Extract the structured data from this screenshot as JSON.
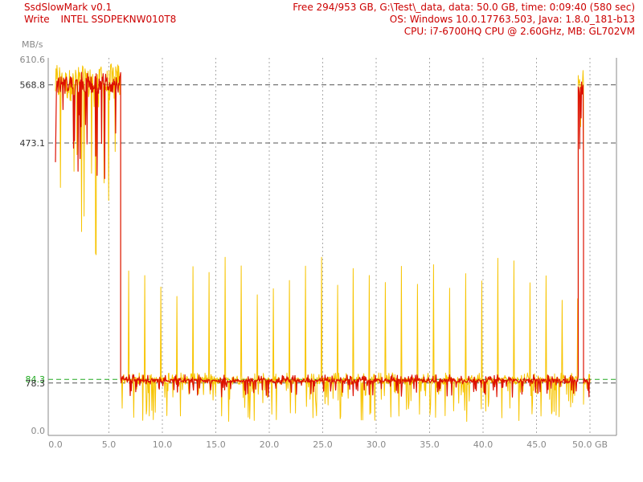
{
  "header": {
    "app": "SsdSlowMark v0.1",
    "mode": "Write",
    "device": "INTEL SSDPEKNW010T8",
    "line1": "Free 294/953 GB, G:\\Test\\_data, data: 50.0 GB, time: 0:09:40 (580 sec)",
    "line2": "OS: Windows 10.0.17763.503, Java: 1.8.0_181-b13",
    "line3": "CPU: i7-6700HQ CPU @ 2.60GHz, MB: GL702VM"
  },
  "colors": {
    "text_red": "#cc0000",
    "axis_gray": "#888888",
    "trace_yellow": "#f7c400",
    "trace_red": "#dd1100",
    "avg_green": "#22aa22",
    "ref_dark": "#555555"
  },
  "chart_data": {
    "type": "line",
    "ylabel": "MB/s",
    "xunit": "GB",
    "xlim": [
      0,
      50
    ],
    "ylim": [
      0,
      610.6
    ],
    "x_ticks": [
      "0.0",
      "5.0",
      "10.0",
      "15.0",
      "20.0",
      "25.0",
      "30.0",
      "35.0",
      "40.0",
      "45.0",
      "50.0"
    ],
    "x_tick_values": [
      0,
      5,
      10,
      15,
      20,
      25,
      30,
      35,
      40,
      45,
      50
    ],
    "y_ticks": [
      "610.6",
      "568.8",
      "473.1",
      "84.3",
      "78.3",
      "0.0"
    ],
    "y_tick_values": [
      610.6,
      568.8,
      473.1,
      84.3,
      78.3,
      0
    ],
    "ref_lines": [
      {
        "value": 568.8,
        "style": "dashed-dark"
      },
      {
        "value": 473.1,
        "style": "dashed-dark"
      },
      {
        "value": 84.3,
        "style": "dashed-green"
      },
      {
        "value": 78.3,
        "style": "dashed-dark"
      }
    ],
    "series": [
      {
        "color": "yellow",
        "segments": [
          {
            "x_from": 0,
            "x_to": 6.1,
            "base": 568.8,
            "min": 250,
            "max": 605
          },
          {
            "x_from": 6.1,
            "x_to": 48.9,
            "base": 82,
            "min": 15,
            "max": 95,
            "spikes_every": 1.5,
            "spike_value": 250
          },
          {
            "x_from": 48.9,
            "x_to": 49.4,
            "base": 568.8,
            "min": 480,
            "max": 600
          },
          {
            "x_from": 49.4,
            "x_to": 50,
            "base": 80,
            "min": 40,
            "max": 95
          }
        ]
      },
      {
        "color": "red",
        "segments": [
          {
            "x_from": 0,
            "x_to": 6.1,
            "base": 568.8,
            "min": 400,
            "max": 590
          },
          {
            "x_from": 6.1,
            "x_to": 48.9,
            "base": 82,
            "min": 55,
            "max": 92
          },
          {
            "x_from": 48.9,
            "x_to": 49.4,
            "base": 560,
            "min": 400,
            "max": 580
          },
          {
            "x_from": 49.4,
            "x_to": 50,
            "base": 80,
            "min": 50,
            "max": 90
          }
        ]
      }
    ]
  }
}
